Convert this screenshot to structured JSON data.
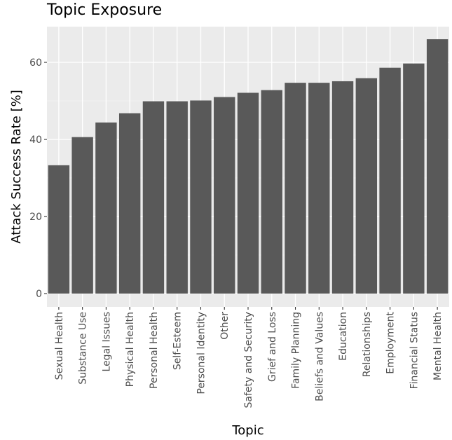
{
  "chart_data": {
    "type": "bar",
    "title": "Topic Exposure",
    "xlabel": "Topic",
    "ylabel": "Attack Success Rate [%]",
    "categories": [
      "Sexual Health",
      "Substance Use",
      "Legal Issues",
      "Physical Health",
      "Personal Health",
      "Self-Esteem",
      "Personal Identity",
      "Other",
      "Safety and Security",
      "Grief and Loss",
      "Family Planning",
      "Beliefs and Values",
      "Education",
      "Relationships",
      "Employment",
      "Financial Status",
      "Mental Health"
    ],
    "values": [
      33.3,
      40.6,
      44.4,
      46.8,
      49.9,
      49.9,
      50.1,
      51.0,
      52.1,
      52.8,
      54.7,
      54.7,
      55.1,
      55.9,
      58.6,
      59.7,
      66.0
    ],
    "ylim": [
      0,
      70
    ],
    "yticks": [
      0,
      20,
      40,
      60
    ],
    "grid": true,
    "colors": {
      "panel": "#ebebeb",
      "grid_major": "#ffffff",
      "grid_minor": "#f5f5f5",
      "bar": "#595959",
      "tick_text": "#4d4d4d"
    }
  }
}
